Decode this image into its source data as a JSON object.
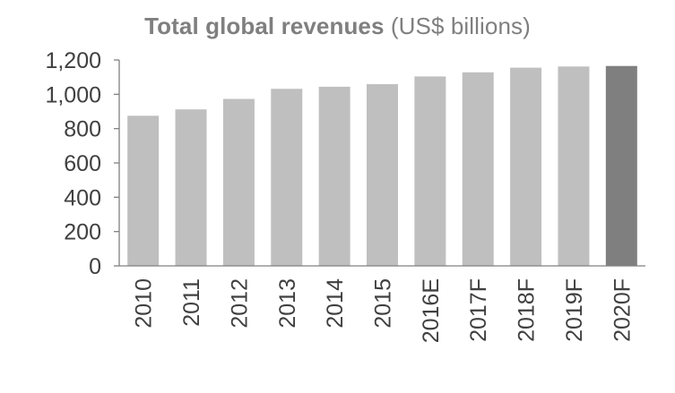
{
  "chart_data": {
    "type": "bar",
    "title": "Total global revenues",
    "title_unit": "(US$ billions)",
    "xlabel": "",
    "ylabel": "",
    "categories": [
      "2010",
      "2011",
      "2012",
      "2013",
      "2014",
      "2015",
      "2016E",
      "2017F",
      "2018F",
      "2019F",
      "2020F"
    ],
    "series": [
      {
        "values": [
          875,
          912,
          973,
          1032,
          1044,
          1059,
          1104,
          1128,
          1155,
          1162,
          1165
        ]
      }
    ],
    "ylim": [
      0,
      1200
    ],
    "yticks": [
      0,
      200,
      400,
      600,
      800,
      1000,
      1200
    ],
    "ytick_labels": [
      "0",
      "200",
      "400",
      "600",
      "800",
      "1,000",
      "1,200"
    ],
    "grid": false,
    "legend": "none",
    "colors": {
      "bar": "#bfbfbf",
      "bar_highlight": "#7f7f7f",
      "axis": "#808080",
      "title": "#7f7f7f",
      "tick_text": "#404040"
    },
    "highlight_category": "2020F"
  }
}
